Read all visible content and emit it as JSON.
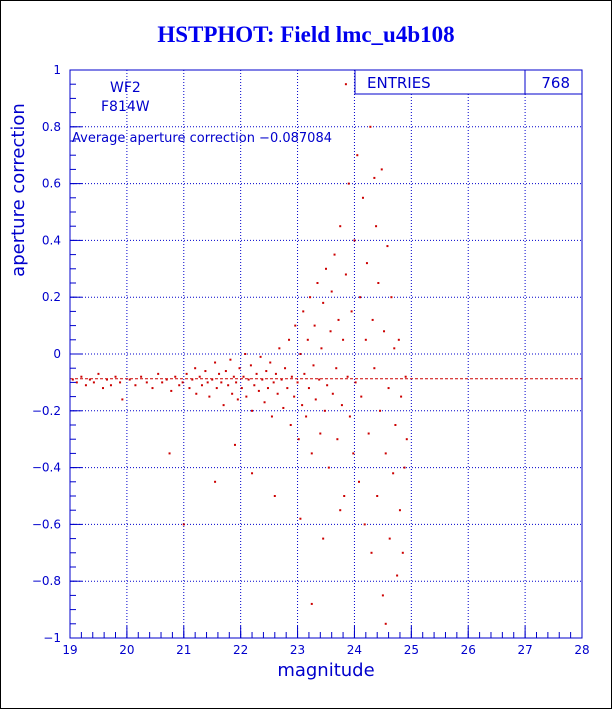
{
  "page_title": "HSTPHOT: Field lmc_u4b108",
  "colors": {
    "axis": "#0000cc",
    "title": "#0000ee",
    "points": "#cc0000",
    "grid": "#0000cc"
  },
  "chart_data": {
    "type": "scatter",
    "title": "HSTPHOT: Field lmc_u4b108",
    "xlabel": "magnitude",
    "ylabel": "aperture correction",
    "xlim": [
      19,
      28
    ],
    "ylim": [
      -1,
      1
    ],
    "x_ticks": [
      "19",
      "20",
      "21",
      "22",
      "23",
      "24",
      "25",
      "26",
      "27",
      "28"
    ],
    "y_ticks": [
      "-1",
      "-0.8",
      "-0.6",
      "-0.4",
      "-0.2",
      "0",
      "0.2",
      "0.4",
      "0.6",
      "0.8",
      "1"
    ],
    "grid": true,
    "stats_box": {
      "label": "ENTRIES",
      "value": "768"
    },
    "annotations": {
      "camera": "WF2",
      "filter": "F814W",
      "average_text": "Average aperture correction  -0.087084"
    },
    "average_line": -0.087084,
    "points": [
      [
        19.05,
        -0.09
      ],
      [
        19.12,
        -0.1
      ],
      [
        19.2,
        -0.08
      ],
      [
        19.28,
        -0.11
      ],
      [
        19.35,
        -0.09
      ],
      [
        19.42,
        -0.1
      ],
      [
        19.5,
        -0.07
      ],
      [
        19.58,
        -0.12
      ],
      [
        19.65,
        -0.09
      ],
      [
        19.72,
        -0.11
      ],
      [
        19.8,
        -0.08
      ],
      [
        19.88,
        -0.1
      ],
      [
        19.92,
        -0.16
      ],
      [
        20.05,
        -0.09
      ],
      [
        20.15,
        -0.11
      ],
      [
        20.25,
        -0.08
      ],
      [
        20.35,
        -0.1
      ],
      [
        20.45,
        -0.12
      ],
      [
        20.55,
        -0.07
      ],
      [
        20.62,
        -0.1
      ],
      [
        20.7,
        -0.09
      ],
      [
        20.78,
        -0.13
      ],
      [
        20.85,
        -0.08
      ],
      [
        20.92,
        -0.11
      ],
      [
        20.98,
        -0.1
      ],
      [
        21.05,
        -0.07
      ],
      [
        21.1,
        -0.12
      ],
      [
        21.15,
        -0.09
      ],
      [
        21.2,
        -0.05
      ],
      [
        21.22,
        -0.14
      ],
      [
        21.28,
        -0.08
      ],
      [
        21.32,
        -0.11
      ],
      [
        21.38,
        -0.06
      ],
      [
        21.42,
        -0.1
      ],
      [
        21.45,
        -0.15
      ],
      [
        21.5,
        -0.09
      ],
      [
        21.55,
        -0.03
      ],
      [
        21.58,
        -0.12
      ],
      [
        21.62,
        -0.07
      ],
      [
        21.66,
        -0.1
      ],
      [
        21.7,
        -0.18
      ],
      [
        21.74,
        -0.06
      ],
      [
        21.78,
        -0.11
      ],
      [
        21.82,
        -0.02
      ],
      [
        21.85,
        -0.14
      ],
      [
        21.88,
        -0.08
      ],
      [
        21.92,
        -0.1
      ],
      [
        21.95,
        -0.16
      ],
      [
        21.98,
        -0.05
      ],
      [
        22.02,
        -0.12
      ],
      [
        22.05,
        -0.08
      ],
      [
        22.08,
        0.0
      ],
      [
        22.1,
        -0.15
      ],
      [
        22.14,
        -0.09
      ],
      [
        22.18,
        -0.04
      ],
      [
        22.2,
        -0.2
      ],
      [
        22.24,
        -0.11
      ],
      [
        22.28,
        -0.07
      ],
      [
        22.32,
        -0.13
      ],
      [
        22.35,
        -0.01
      ],
      [
        22.38,
        -0.09
      ],
      [
        22.42,
        -0.17
      ],
      [
        22.45,
        -0.06
      ],
      [
        22.48,
        -0.12
      ],
      [
        22.52,
        -0.03
      ],
      [
        22.55,
        -0.22
      ],
      [
        22.58,
        -0.1
      ],
      [
        22.62,
        -0.07
      ],
      [
        22.65,
        -0.14
      ],
      [
        22.68,
        0.02
      ],
      [
        22.72,
        -0.09
      ],
      [
        22.75,
        -0.19
      ],
      [
        22.78,
        -0.05
      ],
      [
        22.82,
        -0.12
      ],
      [
        22.85,
        0.05
      ],
      [
        22.88,
        -0.25
      ],
      [
        22.9,
        -0.08
      ],
      [
        22.94,
        -0.15
      ],
      [
        22.96,
        0.1
      ],
      [
        23.0,
        -0.1
      ],
      [
        23.02,
        -0.3
      ],
      [
        23.05,
        0.0
      ],
      [
        23.08,
        -0.18
      ],
      [
        23.1,
        0.15
      ],
      [
        23.12,
        -0.07
      ],
      [
        23.15,
        -0.22
      ],
      [
        23.18,
        0.05
      ],
      [
        23.2,
        -0.12
      ],
      [
        23.22,
        0.2
      ],
      [
        23.25,
        -0.35
      ],
      [
        23.28,
        -0.04
      ],
      [
        23.3,
        0.1
      ],
      [
        23.32,
        -0.16
      ],
      [
        23.35,
        0.25
      ],
      [
        23.38,
        -0.09
      ],
      [
        23.4,
        -0.28
      ],
      [
        23.42,
        0.02
      ],
      [
        23.45,
        0.18
      ],
      [
        23.48,
        -0.2
      ],
      [
        23.5,
        0.3
      ],
      [
        23.52,
        -0.11
      ],
      [
        23.55,
        -0.4
      ],
      [
        23.58,
        0.08
      ],
      [
        23.6,
        0.22
      ],
      [
        23.62,
        -0.14
      ],
      [
        23.65,
        0.35
      ],
      [
        23.68,
        -0.05
      ],
      [
        23.7,
        -0.3
      ],
      [
        23.72,
        0.12
      ],
      [
        23.75,
        0.45
      ],
      [
        23.78,
        -0.18
      ],
      [
        23.8,
        0.05
      ],
      [
        23.82,
        -0.5
      ],
      [
        23.85,
        0.28
      ],
      [
        23.88,
        -0.08
      ],
      [
        23.9,
        0.6
      ],
      [
        23.92,
        -0.22
      ],
      [
        23.95,
        0.15
      ],
      [
        23.98,
        -0.35
      ],
      [
        24.0,
        0.4
      ],
      [
        24.02,
        -0.1
      ],
      [
        24.05,
        0.7
      ],
      [
        24.08,
        -0.45
      ],
      [
        24.1,
        0.2
      ],
      [
        24.12,
        -0.15
      ],
      [
        24.15,
        0.55
      ],
      [
        24.18,
        -0.6
      ],
      [
        24.2,
        0.05
      ],
      [
        24.22,
        0.32
      ],
      [
        24.25,
        -0.28
      ],
      [
        24.28,
        0.8
      ],
      [
        24.3,
        -0.7
      ],
      [
        24.32,
        0.12
      ],
      [
        24.35,
        -0.05
      ],
      [
        24.38,
        0.45
      ],
      [
        24.4,
        -0.5
      ],
      [
        24.42,
        0.25
      ],
      [
        24.45,
        -0.2
      ],
      [
        24.48,
        0.65
      ],
      [
        24.5,
        -0.85
      ],
      [
        24.52,
        0.08
      ],
      [
        24.55,
        -0.35
      ],
      [
        24.58,
        0.38
      ],
      [
        24.6,
        -0.12
      ],
      [
        24.62,
        -0.65
      ],
      [
        24.65,
        0.2
      ],
      [
        24.68,
        -0.42
      ],
      [
        24.7,
        0.02
      ],
      [
        24.72,
        -0.25
      ],
      [
        24.75,
        -0.78
      ],
      [
        24.78,
        0.05
      ],
      [
        24.8,
        -0.55
      ],
      [
        24.82,
        -0.15
      ],
      [
        24.85,
        -0.7
      ],
      [
        24.88,
        -0.4
      ],
      [
        24.9,
        -0.08
      ],
      [
        24.92,
        -0.3
      ],
      [
        23.85,
        0.95
      ],
      [
        23.25,
        -0.88
      ],
      [
        21.0,
        -0.6
      ],
      [
        21.55,
        -0.45
      ],
      [
        22.6,
        -0.5
      ],
      [
        23.05,
        -0.58
      ],
      [
        20.75,
        -0.35
      ],
      [
        24.55,
        -0.95
      ],
      [
        23.75,
        -0.55
      ],
      [
        22.2,
        -0.42
      ],
      [
        21.9,
        -0.32
      ],
      [
        23.45,
        -0.65
      ],
      [
        24.35,
        0.62
      ]
    ]
  }
}
